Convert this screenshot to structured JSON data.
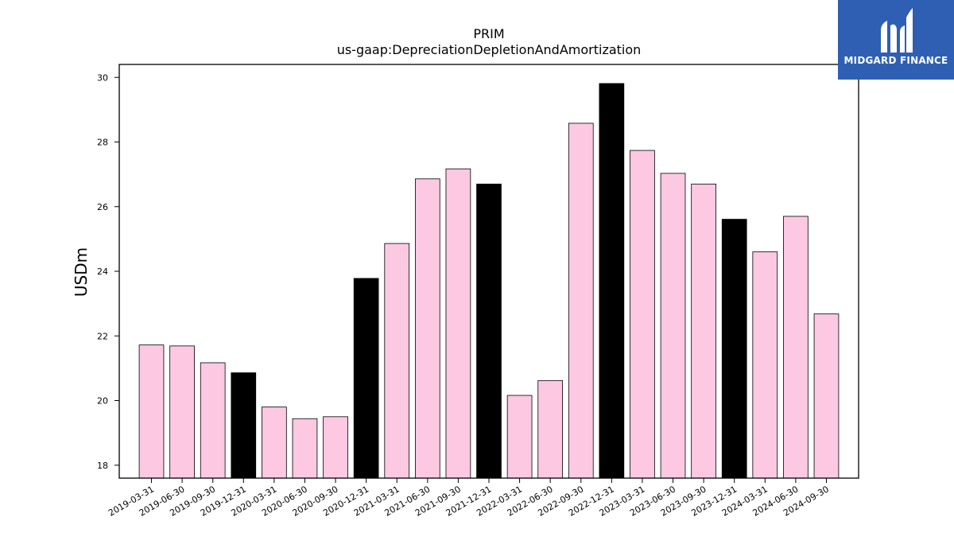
{
  "chart_data": {
    "type": "bar",
    "title": "PRIM",
    "subtitle": "us-gaap:DepreciationDepletionAndAmortization",
    "xlabel": "",
    "ylabel": "USDm",
    "ylim": [
      17.6,
      30.4
    ],
    "yticks": [
      18,
      20,
      22,
      24,
      26,
      28,
      30
    ],
    "grid": false,
    "categories": [
      "2019-03-31",
      "2019-06-30",
      "2019-09-30",
      "2019-12-31",
      "2020-03-31",
      "2020-06-30",
      "2020-09-30",
      "2020-12-31",
      "2021-03-31",
      "2021-06-30",
      "2021-09-30",
      "2021-12-31",
      "2022-03-31",
      "2022-06-30",
      "2022-09-30",
      "2022-12-31",
      "2023-03-31",
      "2023-06-30",
      "2023-09-30",
      "2023-12-31",
      "2024-03-31",
      "2024-06-30",
      "2024-09-30"
    ],
    "values": [
      21.72,
      21.69,
      21.17,
      20.86,
      19.8,
      19.44,
      19.5,
      23.78,
      24.86,
      26.86,
      27.17,
      26.7,
      20.16,
      20.62,
      28.58,
      29.81,
      27.74,
      27.03,
      26.7,
      25.61,
      24.6,
      25.7,
      22.68
    ],
    "highlight": [
      false,
      false,
      false,
      true,
      false,
      false,
      false,
      true,
      false,
      false,
      false,
      true,
      false,
      false,
      false,
      true,
      false,
      false,
      false,
      true,
      false,
      false,
      false
    ],
    "colors": {
      "quarter": "#fcc8e2",
      "year_end": "#000000",
      "edge": "#000000"
    }
  },
  "logo": {
    "text": "MIDGARD FINANCE",
    "background": "#2f5fb3"
  }
}
